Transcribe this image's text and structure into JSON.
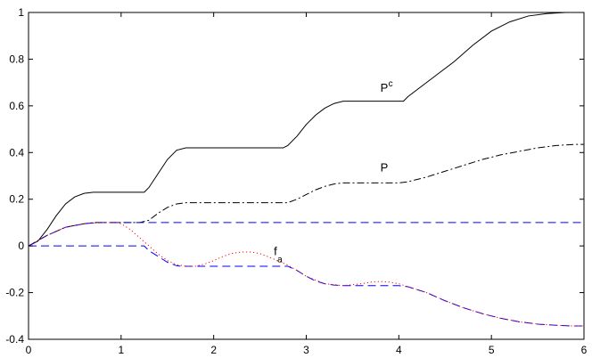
{
  "chart_data": {
    "type": "line",
    "xlim": [
      0,
      6
    ],
    "ylim": [
      -0.4,
      1
    ],
    "xticks": [
      0,
      1,
      2,
      3,
      4,
      5,
      6
    ],
    "yticks": [
      -0.4,
      -0.2,
      0,
      0.2,
      0.4,
      0.6,
      0.8,
      1
    ],
    "xtick_labels": [
      "0",
      "1",
      "2",
      "3",
      "4",
      "5",
      "6"
    ],
    "ytick_labels": [
      "-0.4",
      "-0.2",
      "0",
      "0.2",
      "0.4",
      "0.6",
      "0.8",
      "1"
    ],
    "grid": false,
    "annotations": [
      {
        "base": "P",
        "sup": "c",
        "sub": "",
        "x": 3.8,
        "y": 0.66
      },
      {
        "base": "P",
        "sup": "",
        "sub": "",
        "x": 3.8,
        "y": 0.32
      },
      {
        "base": "f",
        "sup": "",
        "sub": "a",
        "x": 2.65,
        "y": -0.04
      }
    ],
    "series": [
      {
        "style": "solid",
        "color": "#000000",
        "x": [
          0,
          0.1,
          0.2,
          0.3,
          0.4,
          0.5,
          0.6,
          0.7,
          0.8,
          0.9,
          1.0,
          1.1,
          1.2,
          1.25,
          1.3,
          1.4,
          1.5,
          1.6,
          1.7,
          1.8,
          2.0,
          2.2,
          2.4,
          2.6,
          2.75,
          2.8,
          2.9,
          3.0,
          3.1,
          3.2,
          3.3,
          3.4,
          3.6,
          3.8,
          4.0,
          4.05,
          4.1,
          4.2,
          4.4,
          4.6,
          4.8,
          5.0,
          5.2,
          5.4,
          5.6,
          5.8,
          6.0
        ],
        "y": [
          0,
          0.02,
          0.07,
          0.13,
          0.18,
          0.21,
          0.225,
          0.23,
          0.23,
          0.23,
          0.23,
          0.23,
          0.23,
          0.23,
          0.25,
          0.31,
          0.37,
          0.41,
          0.42,
          0.42,
          0.42,
          0.42,
          0.42,
          0.42,
          0.42,
          0.43,
          0.47,
          0.52,
          0.56,
          0.59,
          0.61,
          0.62,
          0.62,
          0.62,
          0.62,
          0.62,
          0.64,
          0.67,
          0.73,
          0.79,
          0.86,
          0.92,
          0.96,
          0.985,
          0.995,
          1.0,
          1.0
        ]
      },
      {
        "style": "dashdot",
        "color": "#000000",
        "x": [
          0,
          0.2,
          0.4,
          0.6,
          0.7,
          0.8,
          1.0,
          1.2,
          1.3,
          1.4,
          1.5,
          1.6,
          1.7,
          1.8,
          2.0,
          2.4,
          2.8,
          2.9,
          3.0,
          3.1,
          3.2,
          3.3,
          3.4,
          3.6,
          3.8,
          4.0,
          4.1,
          4.3,
          4.5,
          4.7,
          4.9,
          5.1,
          5.3,
          5.5,
          5.7,
          5.9,
          6.0
        ],
        "y": [
          0,
          0.045,
          0.08,
          0.095,
          0.1,
          0.1,
          0.1,
          0.1,
          0.11,
          0.14,
          0.165,
          0.18,
          0.185,
          0.185,
          0.185,
          0.185,
          0.185,
          0.2,
          0.22,
          0.24,
          0.255,
          0.265,
          0.27,
          0.27,
          0.27,
          0.27,
          0.275,
          0.295,
          0.32,
          0.345,
          0.37,
          0.39,
          0.405,
          0.42,
          0.43,
          0.435,
          0.435
        ]
      },
      {
        "style": "dashed",
        "color": "#0000ff",
        "x": [
          0,
          0.2,
          0.4,
          0.6,
          0.75,
          0.9,
          6.0
        ],
        "y": [
          0,
          0.045,
          0.08,
          0.095,
          0.1,
          0.1,
          0.1
        ]
      },
      {
        "style": "dashed",
        "color": "#0000ff",
        "x": [
          0,
          1.2,
          1.25,
          1.3,
          1.4,
          1.5,
          1.6,
          1.65,
          1.7,
          2.0,
          2.4,
          2.8,
          2.9,
          3.0,
          3.1,
          3.2,
          3.3,
          3.4,
          3.6,
          3.8,
          4.0,
          4.1,
          4.3,
          4.5,
          4.7,
          4.9,
          5.1,
          5.3,
          5.5,
          5.7,
          5.9,
          6.0
        ],
        "y": [
          0,
          0,
          0,
          -0.02,
          -0.045,
          -0.07,
          -0.085,
          -0.087,
          -0.087,
          -0.087,
          -0.087,
          -0.087,
          -0.105,
          -0.13,
          -0.15,
          -0.162,
          -0.168,
          -0.17,
          -0.17,
          -0.17,
          -0.17,
          -0.175,
          -0.2,
          -0.235,
          -0.265,
          -0.29,
          -0.31,
          -0.325,
          -0.335,
          -0.34,
          -0.343,
          -0.343
        ]
      },
      {
        "style": "dotted",
        "color": "#ff0000",
        "x": [
          0,
          0.2,
          0.4,
          0.6,
          0.8,
          0.95,
          1.0,
          1.1,
          1.2,
          1.3,
          1.4,
          1.5,
          1.6,
          1.7,
          1.8,
          1.9,
          2.0,
          2.1,
          2.2,
          2.3,
          2.4,
          2.5,
          2.6,
          2.7,
          2.8,
          2.9,
          3.0,
          3.2,
          3.4,
          3.6,
          3.7,
          3.8,
          3.9,
          4.0,
          4.1,
          4.3,
          4.5,
          4.7,
          4.9,
          5.1,
          5.3,
          5.5,
          5.7,
          5.9,
          6.0
        ],
        "y": [
          0,
          0.045,
          0.08,
          0.095,
          0.1,
          0.1,
          0.095,
          0.07,
          0.035,
          0.0,
          -0.035,
          -0.063,
          -0.08,
          -0.087,
          -0.087,
          -0.078,
          -0.063,
          -0.045,
          -0.032,
          -0.026,
          -0.026,
          -0.033,
          -0.048,
          -0.065,
          -0.082,
          -0.105,
          -0.13,
          -0.162,
          -0.17,
          -0.162,
          -0.155,
          -0.152,
          -0.155,
          -0.162,
          -0.175,
          -0.2,
          -0.235,
          -0.265,
          -0.29,
          -0.31,
          -0.325,
          -0.335,
          -0.34,
          -0.343,
          -0.343
        ]
      }
    ]
  }
}
